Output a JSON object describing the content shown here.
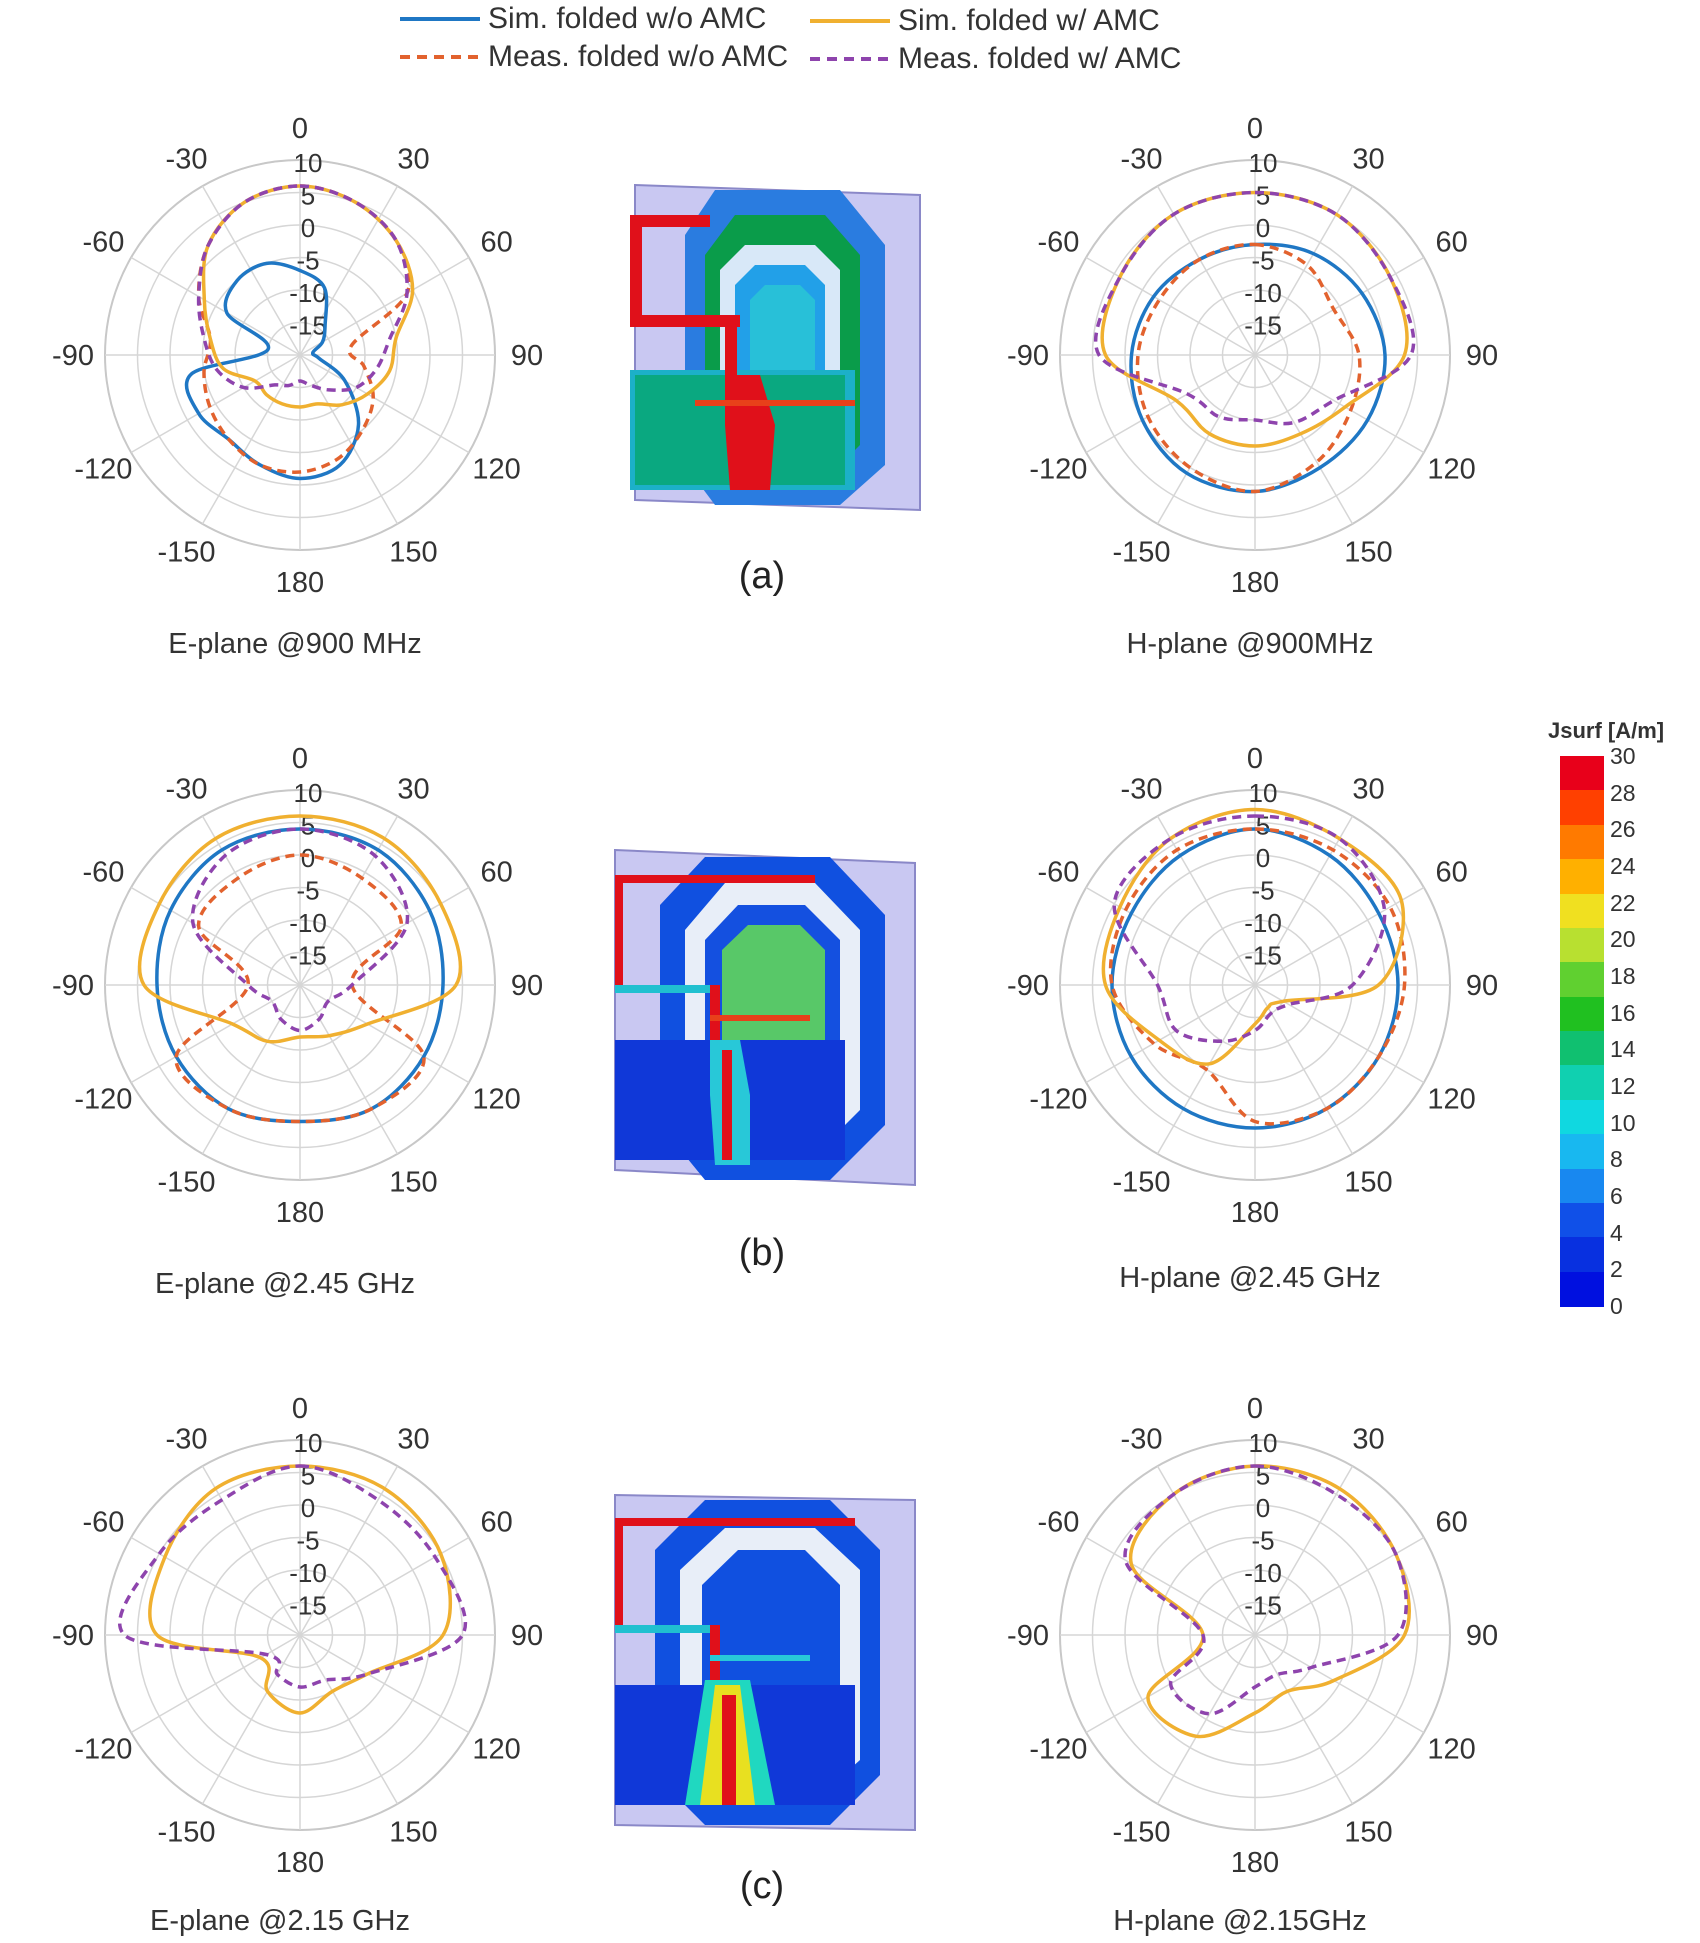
{
  "legend": [
    {
      "key": "sim_wo",
      "label": "Sim. folded w/o AMC",
      "color": "#1f77c4",
      "dash": "solid"
    },
    {
      "key": "meas_wo",
      "label": "Meas. folded w/o AMC",
      "color": "#e2622e",
      "dash": "dashed"
    },
    {
      "key": "sim_w",
      "label": "Sim. folded w/ AMC",
      "color": "#f0b030",
      "dash": "solid"
    },
    {
      "key": "meas_w",
      "label": "Meas. folded w/ AMC",
      "color": "#8e44ad",
      "dash": "dashed"
    }
  ],
  "subcaptions": [
    "(a)",
    "(b)",
    "(c)"
  ],
  "angle_labels": [
    "0",
    "30",
    "60",
    "90",
    "120",
    "150",
    "180",
    "-150",
    "-120",
    "-90",
    "-60",
    "-30"
  ],
  "colorbar": {
    "title": "Jsurf [A/m]",
    "ticks": [
      "30",
      "28",
      "26",
      "24",
      "22",
      "20",
      "18",
      "16",
      "14",
      "12",
      "10",
      "8",
      "6",
      "4",
      "2",
      "0"
    ],
    "colors": [
      "#e8001a",
      "#ff4000",
      "#ff7a00",
      "#ffb000",
      "#f0e020",
      "#b8e030",
      "#60d030",
      "#20c020",
      "#10c070",
      "#10d0b0",
      "#10d8e0",
      "#18b8f0",
      "#1888f0",
      "#1050e8",
      "#0830e0",
      "#0010e0"
    ]
  },
  "chart_data": [
    {
      "type": "polar",
      "caption": "E-plane @900 MHz",
      "r_axis": {
        "min": -20,
        "max": 10,
        "ticks": [
          10,
          5,
          0,
          -5,
          -10,
          -15
        ]
      },
      "angle_ticks_deg": [
        0,
        30,
        60,
        90,
        120,
        150,
        180,
        -150,
        -120,
        -90,
        -60,
        -30
      ],
      "series": [
        {
          "key": "sim_wo",
          "angles": [
            0,
            20,
            40,
            60,
            80,
            100,
            120,
            140,
            160,
            180,
            200,
            220,
            240,
            260,
            280,
            300,
            320,
            340
          ],
          "values": [
            -7,
            -9,
            -14,
            -16,
            -18,
            -17,
            -12,
            -6,
            -2,
            -1,
            -2,
            -3,
            -2,
            -3,
            -15,
            -7,
            -5,
            -5
          ]
        },
        {
          "key": "meas_wo",
          "angles": [
            0,
            20,
            40,
            60,
            80,
            100,
            120,
            140,
            160,
            180,
            200,
            220,
            240,
            260,
            280,
            300,
            320,
            340
          ],
          "values": [
            6,
            5,
            3,
            -1,
            -12,
            -10,
            -7,
            -5,
            -3,
            -2,
            -2,
            -3,
            -4,
            -5,
            -6,
            -2,
            2,
            5
          ]
        },
        {
          "key": "sim_w",
          "angles": [
            0,
            20,
            40,
            60,
            80,
            100,
            120,
            140,
            160,
            180,
            200,
            220,
            240,
            260,
            280,
            300,
            320,
            340
          ],
          "values": [
            6,
            5,
            3,
            0,
            -5,
            -6,
            -8,
            -10,
            -12,
            -12,
            -12,
            -12,
            -12,
            -8,
            -6,
            -3,
            2,
            5
          ]
        },
        {
          "key": "meas_w",
          "angles": [
            0,
            20,
            40,
            60,
            80,
            100,
            120,
            140,
            160,
            180,
            200,
            220,
            240,
            260,
            280,
            300,
            320,
            340
          ],
          "values": [
            6,
            5,
            3,
            -1,
            -6,
            -8,
            -10,
            -13,
            -15,
            -16,
            -15,
            -14,
            -10,
            -7,
            -5,
            -2,
            2,
            5
          ]
        }
      ]
    },
    {
      "type": "polar",
      "caption": "H-plane @900MHz",
      "r_axis": {
        "min": -20,
        "max": 10,
        "ticks": [
          10,
          5,
          0,
          -5,
          -10,
          -15
        ]
      },
      "angle_ticks_deg": [
        0,
        30,
        60,
        90,
        120,
        150,
        180,
        -150,
        -120,
        -90,
        -60,
        -30
      ],
      "series": [
        {
          "key": "sim_wo",
          "angles": [
            0,
            30,
            60,
            90,
            120,
            150,
            180,
            210,
            240,
            270,
            300,
            330
          ],
          "values": [
            -3,
            -2,
            -1,
            0,
            0,
            0,
            1,
            1,
            0,
            -1,
            -2,
            -3
          ]
        },
        {
          "key": "meas_wo",
          "angles": [
            0,
            30,
            60,
            90,
            120,
            150,
            180,
            210,
            240,
            270,
            300,
            330
          ],
          "values": [
            -3,
            -4,
            -6,
            -4,
            -3,
            -1,
            1,
            0,
            -1,
            -2,
            -3,
            -3
          ]
        },
        {
          "key": "sim_w",
          "angles": [
            0,
            30,
            60,
            90,
            120,
            150,
            180,
            210,
            240,
            270,
            300,
            330
          ],
          "values": [
            5,
            5,
            4,
            3,
            -4,
            -6,
            -6,
            -6,
            -6,
            3,
            4,
            5
          ]
        },
        {
          "key": "meas_w",
          "angles": [
            0,
            30,
            60,
            90,
            120,
            150,
            180,
            210,
            240,
            270,
            300,
            330
          ],
          "values": [
            5,
            5,
            4,
            4,
            -6,
            -8,
            -10,
            -9,
            -8,
            4,
            4,
            5
          ]
        }
      ]
    },
    {
      "type": "polar",
      "caption": "E-plane @2.45 GHz",
      "r_axis": {
        "min": -20,
        "max": 10,
        "ticks": [
          10,
          5,
          0,
          -5,
          -10,
          -15
        ]
      },
      "angle_ticks_deg": [
        0,
        30,
        60,
        90,
        120,
        150,
        180,
        -150,
        -120,
        -90,
        -60,
        -30
      ],
      "series": [
        {
          "key": "sim_wo",
          "angles": [
            0,
            30,
            60,
            90,
            120,
            150,
            180,
            210,
            240,
            270,
            300,
            330
          ],
          "values": [
            4,
            4,
            3,
            2,
            2,
            2,
            1,
            2,
            2,
            2,
            3,
            4
          ]
        },
        {
          "key": "meas_wo",
          "angles": [
            0,
            30,
            60,
            90,
            120,
            150,
            180,
            210,
            240,
            270,
            300,
            330
          ],
          "values": [
            0,
            -1,
            -2,
            -12,
            2,
            2,
            1,
            2,
            2,
            -12,
            -2,
            -1
          ]
        },
        {
          "key": "sim_w",
          "angles": [
            0,
            30,
            60,
            90,
            120,
            150,
            180,
            210,
            240,
            270,
            300,
            330
          ],
          "values": [
            6,
            6,
            5,
            4,
            -8,
            -11,
            -12,
            -10,
            -8,
            4,
            5,
            6
          ]
        },
        {
          "key": "meas_w",
          "angles": [
            0,
            30,
            60,
            90,
            120,
            150,
            180,
            210,
            240,
            270,
            300,
            330
          ],
          "values": [
            4,
            3,
            -1,
            -12,
            -15,
            -14,
            -13,
            -14,
            -15,
            -12,
            -1,
            3
          ]
        }
      ]
    },
    {
      "type": "polar",
      "caption": "H-plane @2.45 GHz",
      "r_axis": {
        "min": -20,
        "max": 10,
        "ticks": [
          10,
          5,
          0,
          -5,
          -10,
          -15
        ]
      },
      "angle_ticks_deg": [
        0,
        30,
        60,
        90,
        120,
        150,
        180,
        -150,
        -120,
        -90,
        -60,
        -30
      ],
      "series": [
        {
          "key": "sim_wo",
          "angles": [
            0,
            30,
            60,
            90,
            120,
            150,
            180,
            210,
            240,
            270,
            300,
            330
          ],
          "values": [
            4,
            3,
            2,
            2,
            2,
            2,
            2,
            2,
            2,
            2,
            2,
            3
          ]
        },
        {
          "key": "meas_wo",
          "angles": [
            0,
            30,
            60,
            90,
            120,
            150,
            180,
            210,
            240,
            270,
            300,
            330
          ],
          "values": [
            4,
            4,
            4,
            3,
            2,
            2,
            1,
            -5,
            -2,
            2,
            3,
            4
          ]
        },
        {
          "key": "sim_w",
          "angles": [
            0,
            30,
            60,
            90,
            120,
            150,
            180,
            210,
            240,
            270,
            300,
            330
          ],
          "values": [
            7,
            6,
            6,
            -1,
            -15,
            -16,
            -14,
            -6,
            -3,
            3,
            4,
            6
          ]
        },
        {
          "key": "meas_w",
          "angles": [
            0,
            30,
            60,
            90,
            120,
            150,
            180,
            210,
            240,
            270,
            300,
            330
          ],
          "values": [
            6,
            6,
            3,
            -5,
            -14,
            -15,
            -13,
            -10,
            -6,
            -5,
            5,
            6
          ]
        }
      ]
    },
    {
      "type": "polar",
      "caption": "E-plane @2.15 GHz",
      "r_axis": {
        "min": -20,
        "max": 10,
        "ticks": [
          10,
          5,
          0,
          -5,
          -10,
          -15
        ]
      },
      "angle_ticks_deg": [
        0,
        30,
        60,
        90,
        120,
        150,
        180,
        -150,
        -120,
        -90,
        -60,
        -30
      ],
      "series": [
        {
          "key": "sim_w",
          "angles": [
            0,
            30,
            60,
            90,
            120,
            150,
            180,
            210,
            240,
            270,
            300,
            330
          ],
          "values": [
            6,
            6,
            5,
            2,
            -8,
            -10,
            -8,
            -10,
            -13,
            2,
            4,
            6
          ]
        },
        {
          "key": "meas_w",
          "angles": [
            0,
            30,
            60,
            90,
            120,
            150,
            180,
            210,
            240,
            270,
            300,
            330
          ],
          "values": [
            6,
            4,
            4,
            5,
            -8,
            -12,
            -12,
            -13,
            -14,
            7,
            5,
            4
          ]
        }
      ]
    },
    {
      "type": "polar",
      "caption": "H-plane @2.15GHz",
      "r_axis": {
        "min": -20,
        "max": 10,
        "ticks": [
          10,
          5,
          0,
          -5,
          -10,
          -15
        ]
      },
      "angle_ticks_deg": [
        0,
        30,
        60,
        90,
        120,
        150,
        180,
        -150,
        -120,
        -90,
        -60,
        -30
      ],
      "series": [
        {
          "key": "sim_w",
          "angles": [
            0,
            30,
            60,
            90,
            120,
            150,
            180,
            210,
            240,
            270,
            300,
            330
          ],
          "values": [
            6,
            6,
            5,
            3,
            -6,
            -10,
            -8,
            -2,
            -1,
            -12,
            2,
            5
          ]
        },
        {
          "key": "meas_w",
          "angles": [
            0,
            30,
            60,
            90,
            120,
            150,
            180,
            210,
            240,
            270,
            300,
            330
          ],
          "values": [
            6,
            5,
            5,
            2,
            -10,
            -13,
            -12,
            -6,
            -5,
            -12,
            3,
            5
          ]
        }
      ]
    }
  ]
}
